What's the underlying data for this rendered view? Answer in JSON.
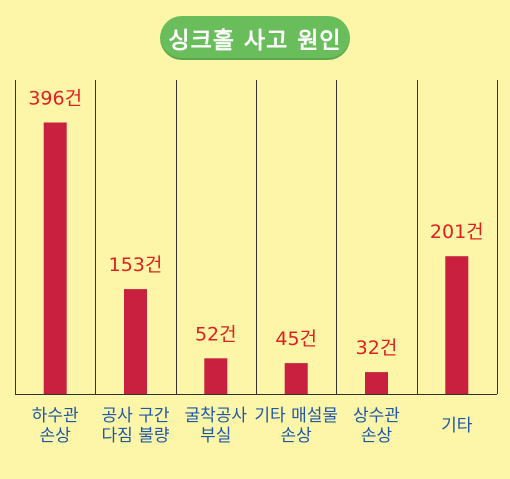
{
  "title": "싱크홀 사고 원인",
  "colors": {
    "background": "#FDF6A8",
    "title_pill": "#69BE5B",
    "title_text": "#FFFFFF",
    "bar": "#C8203E",
    "value_label": "#E02020",
    "category_label": "#1D57A6",
    "grid": "#333333"
  },
  "chart_data": {
    "type": "bar",
    "title": "싱크홀 사고 원인",
    "categories": [
      [
        "하수관",
        "손상"
      ],
      [
        "공사 구간",
        "다짐 불량"
      ],
      [
        "굴착공사",
        "부실"
      ],
      [
        "기타 매설물",
        "손상"
      ],
      [
        "상수관",
        "손상"
      ],
      [
        "기타"
      ]
    ],
    "values": [
      396,
      153,
      52,
      45,
      32,
      201
    ],
    "value_labels": [
      "396건",
      "153건",
      "52건",
      "45건",
      "32건",
      "201건"
    ],
    "unit": "건",
    "ylim": [
      0,
      420
    ],
    "grid": "vertical separators",
    "legend": "none"
  }
}
